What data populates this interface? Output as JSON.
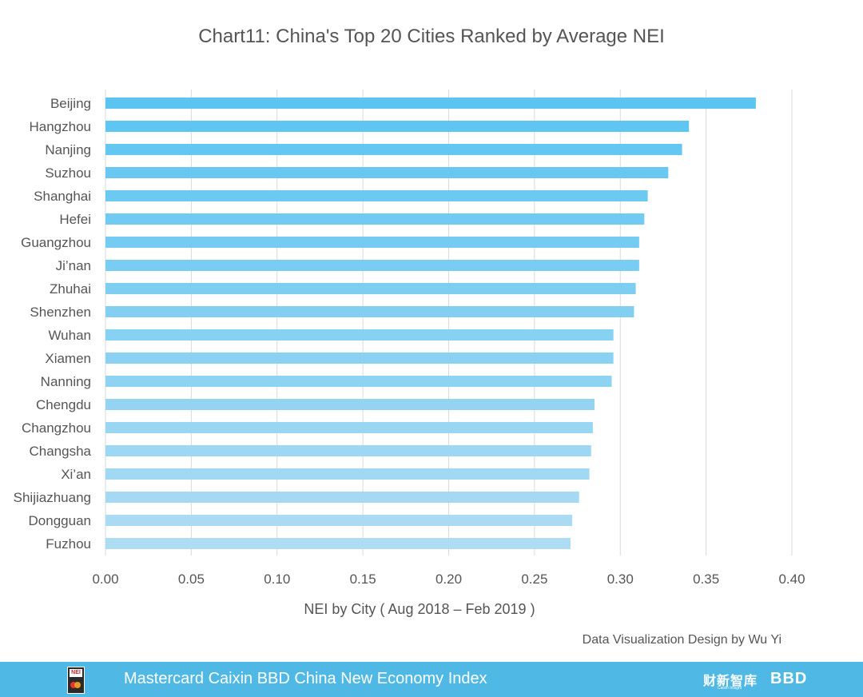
{
  "chart_data": {
    "type": "bar",
    "orientation": "horizontal",
    "title": "Chart11:  China's Top 20 Cities Ranked by Average NEI",
    "xlabel": "NEI by City ( Aug 2018 – Feb 2019 )",
    "ylabel": "",
    "xlim": [
      0,
      0.4
    ],
    "xticks": [
      "0.00",
      "0.05",
      "0.10",
      "0.15",
      "0.20",
      "0.25",
      "0.30",
      "0.35",
      "0.40"
    ],
    "grid": true,
    "categories": [
      "Beijing",
      "Hangzhou",
      "Nanjing",
      "Suzhou",
      "Shanghai",
      "Hefei",
      "Guangzhou",
      "Ji’nan",
      "Zhuhai",
      "Shenzhen",
      "Wuhan",
      "Xiamen",
      "Nanning",
      "Chengdu",
      "Changzhou",
      "Changsha",
      "Xi’an",
      "Shijiazhuang",
      "Dongguan",
      "Fuzhou"
    ],
    "values": [
      0.379,
      0.34,
      0.336,
      0.328,
      0.316,
      0.314,
      0.311,
      0.311,
      0.309,
      0.308,
      0.296,
      0.296,
      0.295,
      0.285,
      0.284,
      0.283,
      0.282,
      0.276,
      0.272,
      0.271
    ],
    "colors": {
      "bar_top": "#5bc4f1",
      "bar_bottom": "#aedcf3",
      "grid": "#d9d9d9",
      "text": "#555555"
    }
  },
  "credit": "Data Visualization Design by Wu Yi",
  "footer": {
    "title": "Mastercard Caixin BBD China New Economy Index",
    "logo_text": "NEI",
    "partner_caixin": "财新智库",
    "partner_caixin_sub": "Caixin Insight",
    "partner_bbd": "BBD",
    "background": "#4fb8e4"
  }
}
